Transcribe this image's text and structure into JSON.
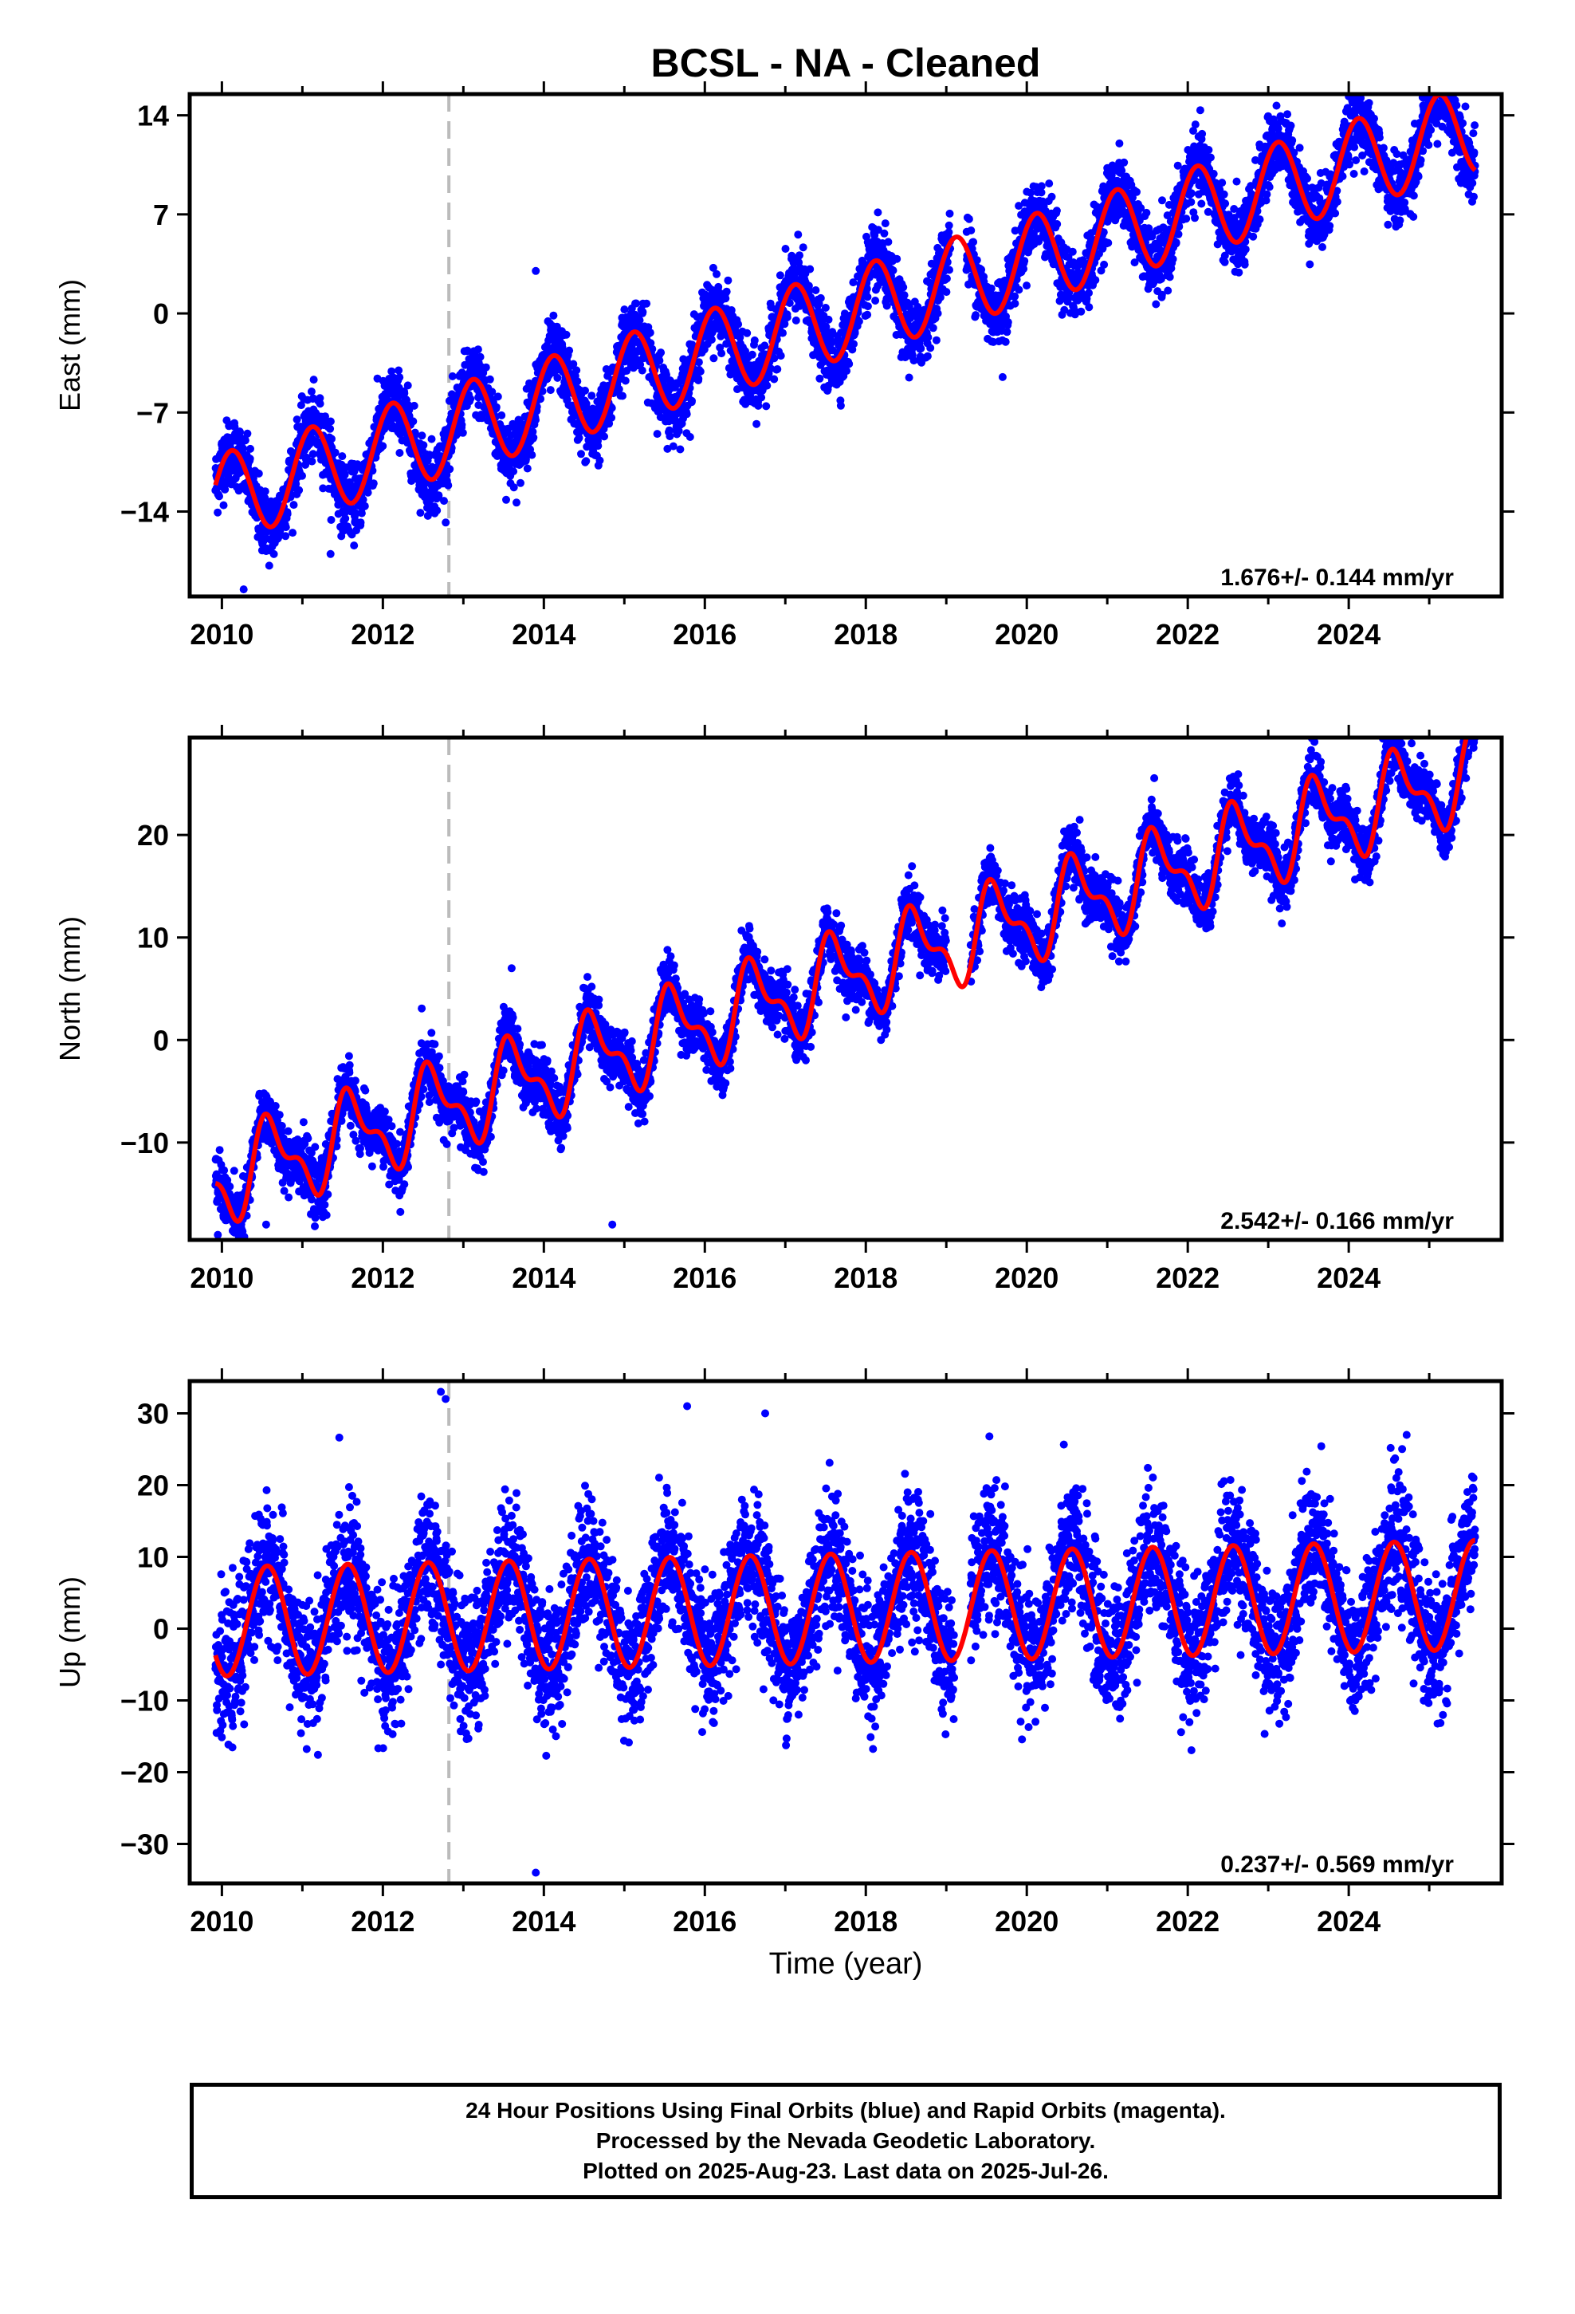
{
  "title": "BCSL  - NA - Cleaned",
  "xlabel": "Time (year)",
  "colors": {
    "points": "#0000ff",
    "model": "#ff0000",
    "offset_line": "#bbbbbb",
    "axes": "#000000"
  },
  "footer": {
    "line1": "24 Hour Positions Using Final Orbits (blue) and Rapid Orbits (magenta).",
    "line2": "Processed by the Nevada Geodetic Laboratory.",
    "line3": "Plotted on 2025-Aug-23. Last data on 2025-Jul-26."
  },
  "chart_data": [
    {
      "type": "scatter",
      "component": "east",
      "ylabel": "East (mm)",
      "xlim": [
        2009.6,
        2025.9
      ],
      "ylim": [
        -20,
        15.5
      ],
      "xticks": [
        2010,
        2012,
        2014,
        2016,
        2018,
        2020,
        2022,
        2024
      ],
      "yticks": [
        14,
        7,
        0,
        -7,
        -14
      ],
      "ytick_labels": [
        "14",
        "7",
        "0",
        "−7",
        "−14"
      ],
      "offset_year": 2012.82,
      "rate_text": "1.676+/- 0.144 mm/yr",
      "model": {
        "start": 2009.92,
        "end": 2025.57,
        "segments": [
          {
            "from": 2009.92,
            "to": 2025.57,
            "a": -13.0,
            "b": 1.676,
            "c": 2.1,
            "d": 2.3,
            "e": 0.0,
            "f": 0.0
          }
        ]
      },
      "points_series": {
        "description": "daily GPS positions",
        "start": 2009.92,
        "end": 2025.57,
        "segments": [
          {
            "from": 2009.92,
            "to": 2025.57,
            "a": -13.0,
            "b": 1.676,
            "c": 2.1,
            "d": 2.3,
            "e": 0.0,
            "f": 0.0
          }
        ],
        "scatter_sd": 1.2,
        "gaps": [
          [
            2019.05,
            2019.25
          ]
        ],
        "outliers": [
          [
            2010.27,
            -19.5
          ],
          [
            2011.35,
            -17.0
          ],
          [
            2013.9,
            3.0
          ],
          [
            2019.7,
            -4.5
          ],
          [
            2023.05,
            13.0
          ]
        ]
      }
    },
    {
      "type": "scatter",
      "component": "north",
      "ylabel": "North (mm)",
      "xlim": [
        2009.6,
        2025.9
      ],
      "ylim": [
        -19.5,
        29.5
      ],
      "xticks": [
        2010,
        2012,
        2014,
        2016,
        2018,
        2020,
        2022,
        2024
      ],
      "yticks": [
        20,
        10,
        0,
        -10
      ],
      "ytick_labels": [
        "20",
        "10",
        "0",
        "−10"
      ],
      "offset_year": 2012.82,
      "rate_text": "2.542+/- 0.166 mm/yr",
      "model": {
        "start": 2009.92,
        "end": 2025.57,
        "segments": [
          {
            "from": 2009.92,
            "to": 2012.82,
            "a": -13.5,
            "b": 2.542,
            "c": -2.5,
            "d": -2.8,
            "e": 0.0,
            "f": 1.8
          },
          {
            "from": 2012.82,
            "to": 2025.57,
            "a": -13.5,
            "b": 2.542,
            "c": -2.5,
            "d": -2.8,
            "e": 0.0,
            "f": 1.8
          }
        ]
      },
      "points_series": {
        "start": 2009.92,
        "end": 2025.57,
        "segments": [
          {
            "from": 2009.92,
            "to": 2012.82,
            "a": -13.5,
            "b": 2.542,
            "c": -2.5,
            "d": -2.8,
            "e": 0.0,
            "f": 1.8
          },
          {
            "from": 2012.82,
            "to": 2025.57,
            "a": -13.5,
            "b": 2.542,
            "c": -2.5,
            "d": -2.8,
            "e": 0.0,
            "f": 1.8
          }
        ],
        "scatter_sd": 1.4,
        "gaps": [
          [
            2019.0,
            2019.3
          ]
        ],
        "outliers": [
          [
            2009.95,
            -19.0
          ],
          [
            2010.55,
            -18.0
          ],
          [
            2013.6,
            7.0
          ],
          [
            2014.85,
            -18.0
          ],
          [
            2025.55,
            28.5
          ]
        ]
      }
    },
    {
      "type": "scatter",
      "component": "up",
      "ylabel": "Up (mm)",
      "xlim": [
        2009.6,
        2025.9
      ],
      "ylim": [
        -35.5,
        34.5
      ],
      "xticks": [
        2010,
        2012,
        2014,
        2016,
        2018,
        2020,
        2022,
        2024
      ],
      "yticks": [
        30,
        20,
        10,
        0,
        -10,
        -20,
        -30
      ],
      "ytick_labels": [
        "30",
        "20",
        "10",
        "0",
        "−10",
        "−20",
        "−30"
      ],
      "offset_year": 2012.82,
      "rate_text": "0.237+/- 0.569 mm/yr",
      "model": {
        "start": 2009.92,
        "end": 2025.57,
        "segments": [
          {
            "from": 2009.92,
            "to": 2025.57,
            "a": 1.0,
            "b": 0.237,
            "c": -3.0,
            "d": -7.0,
            "e": 0.0,
            "f": 0.0
          }
        ]
      },
      "points_series": {
        "start": 2009.92,
        "end": 2025.57,
        "segments": [
          {
            "from": 2009.92,
            "to": 2025.57,
            "a": 1.0,
            "b": 0.237,
            "c": -3.0,
            "d": -7.0,
            "e": 0.0,
            "f": 0.0
          }
        ],
        "scatter_sd": 4.5,
        "gaps": [
          [
            2019.1,
            2019.3
          ]
        ],
        "outliers": [
          [
            2012.72,
            33.0
          ],
          [
            2012.78,
            32.0
          ],
          [
            2015.78,
            31.0
          ],
          [
            2016.75,
            30.0
          ],
          [
            2013.9,
            -34.0
          ],
          [
            2024.72,
            27.0
          ],
          [
            2025.55,
            21.0
          ]
        ]
      }
    }
  ]
}
